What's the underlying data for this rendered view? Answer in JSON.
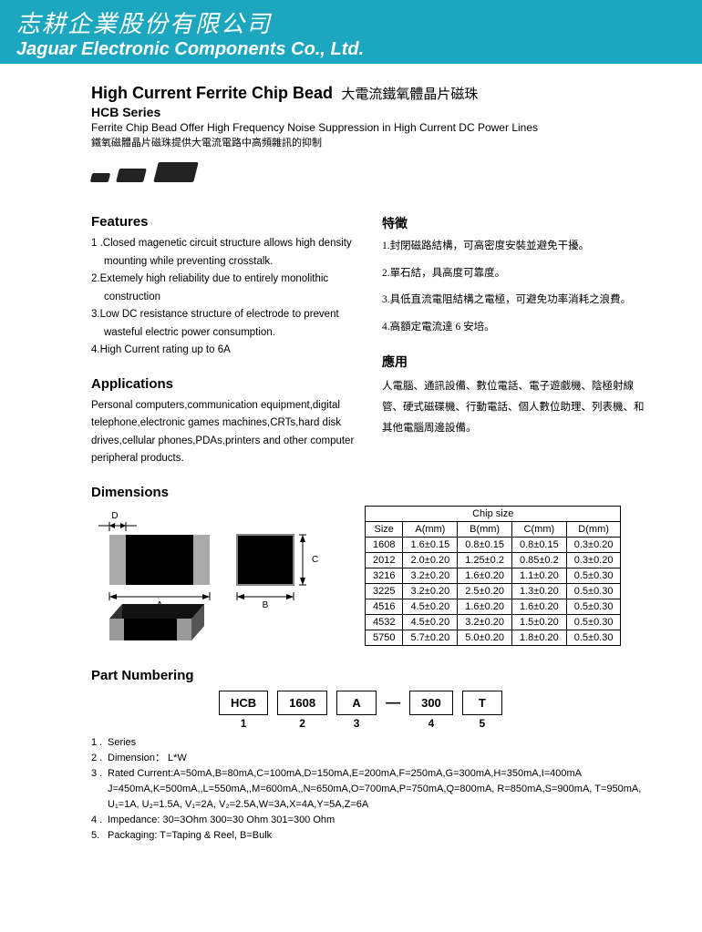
{
  "banner": {
    "cn": "志耕企業股份有限公司",
    "en": "Jaguar Electronic Components Co., Ltd."
  },
  "title": {
    "en": "High Current Ferrite Chip Bead",
    "cn": "大電流鐵氧體晶片磁珠"
  },
  "series": "HCB Series",
  "subtitle": {
    "en": "Ferrite Chip Bead Offer High Frequency Noise Suppression in High Current DC Power Lines",
    "cn": "鐵氧磁體晶片磁珠提供大電流電路中高頻雜訊的抑制"
  },
  "features": {
    "h_en": "Features",
    "h_cn": "特徵",
    "en": [
      "1 .Closed magenetic circuit structure allows high density mounting while preventing crosstalk.",
      "2.Extemely high reliability due to entirely monolithic construction",
      "3.Low DC resistance structure of electrode to prevent wasteful electric power consumption.",
      "4.High Current rating up to 6A"
    ],
    "cn": [
      "1.封閉磁路結構，可高密度安裝並避免干擾。",
      "2.單石結，具高度可靠度。",
      "3.具低直流電阻結構之電極，可避免功率消耗之浪費。",
      "4.高額定電流達 6 安培。"
    ]
  },
  "applications": {
    "h_en": "Applications",
    "h_cn": "應用",
    "en": "Personal computers,communication equipment,digital telephone,electronic games machines,CRTs,hard disk drives,cellular phones,PDAs,printers and other computer peripheral products.",
    "cn": "人電腦、通訊設備、數位電話、電子遊戲機、陰極射線管、硬式磁碟機、行動電話、個人數位助理、列表機、和其他電腦周邊設備。"
  },
  "dimensions": {
    "h": "Dimensions",
    "table_head": "Chip size",
    "cols": [
      "Size",
      "A(mm)",
      "B(mm)",
      "C(mm)",
      "D(mm)"
    ],
    "rows": [
      [
        "1608",
        "1.6±0.15",
        "0.8±0.15",
        "0.8±0.15",
        "0.3±0.20"
      ],
      [
        "2012",
        "2.0±0.20",
        "1.25±0.2",
        "0.85±0.2",
        "0.3±0.20"
      ],
      [
        "3216",
        "3.2±0.20",
        "1.6±0.20",
        "1.1±0.20",
        "0.5±0.30"
      ],
      [
        "3225",
        "3.2±0.20",
        "2.5±0.20",
        "1.3±0.20",
        "0.5±0.30"
      ],
      [
        "4516",
        "4.5±0.20",
        "1.6±0.20",
        "1.6±0.20",
        "0.5±0.30"
      ],
      [
        "4532",
        "4.5±0.20",
        "3.2±0.20",
        "1.5±0.20",
        "0.5±0.30"
      ],
      [
        "5750",
        "5.7±0.20",
        "5.0±0.20",
        "1.8±0.20",
        "0.5±0.30"
      ]
    ]
  },
  "part_numbering": {
    "h": "Part Numbering",
    "boxes": [
      "HCB",
      "1608",
      "A",
      "300",
      "T"
    ],
    "nums": [
      "1",
      "2",
      "3",
      "4",
      "5"
    ],
    "legend": [
      {
        "n": "1 .",
        "t": "Series"
      },
      {
        "n": "2 .",
        "t": "Dimension： L*W"
      },
      {
        "n": "3 .",
        "t": "Rated Current:A=50mA,B=80mA,C=100mA,D=150mA,E=200mA,F=250mA,G=300mA,H=350mA,I=400mA J=450mA,K=500mA,,L=550mA,,M=600mA,,N=650mA,O=700mA,P=750mA,Q=800mA, R=850mA,S=900mA, T=950mA, U₁=1A, U₂=1.5A, V₁=2A, V₂=2.5A,W=3A,X=4A,Y=5A,Z=6A"
      },
      {
        "n": "4 .",
        "t": "Impedance: 30=3Ohm   300=30 Ohm 301=300 Ohm"
      },
      {
        "n": "5.",
        "t": "Packaging: T=Taping & Reel, B=Bulk"
      }
    ]
  }
}
